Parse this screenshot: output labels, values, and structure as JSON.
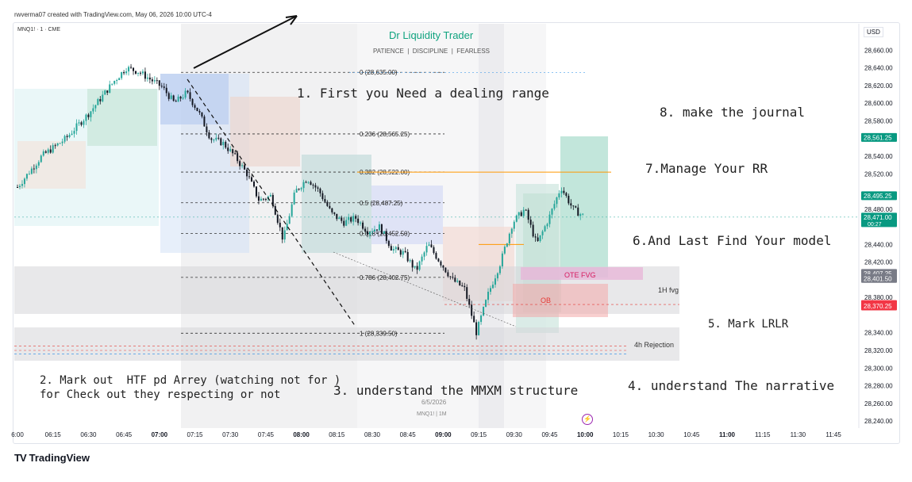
{
  "header": {
    "credit": "rwverma07 created with TradingView.com, May 06, 2026 10:00 UTC-4",
    "symbol": "MNQ1! · 1 · CME",
    "currency": "USD"
  },
  "brand": {
    "title": "Dr Liquidity Trader",
    "subtitle": "PATIENCE  |  DISCIPLINE  |  FEARLESS",
    "footer_logo": "TradingView",
    "watermark_date": "6/5/2026",
    "watermark_symbol": "MNQ1! | 1M"
  },
  "colors": {
    "up": "#26a69a",
    "down": "#131722",
    "accent": "#1e88e5",
    "price_tag_green": "#089981",
    "price_tag_red": "#f23645",
    "price_tag_gray": "#787b86",
    "fib_line": "#333333",
    "orange_level": "#ff9800"
  },
  "annotations": [
    "1. First you Need a dealing range",
    "2. Mark out  HTF pd Arrey (watching not for )",
    "for Check out they respecting or not",
    "3. understand the MMXM structure",
    "4. understand The narrative",
    "5. Mark LRLR",
    "6.And Last Find Your model",
    "7.Manage Your RR",
    "8. make the journal"
  ],
  "zone_labels": {
    "fvg_1h": "1H fvg",
    "rejection_4h": "4h Rejection",
    "ote_fvg": "OTE FVG",
    "ob": "OB"
  },
  "chart_data": {
    "type": "candlestick",
    "x_ticks": [
      "6:00",
      "06:15",
      "06:30",
      "06:45",
      "07:00",
      "07:15",
      "07:30",
      "07:45",
      "08:00",
      "08:15",
      "08:30",
      "08:45",
      "09:00",
      "09:15",
      "09:30",
      "09:45",
      "10:00",
      "10:15",
      "10:30",
      "10:45",
      "11:00",
      "11:15",
      "11:30",
      "11:45"
    ],
    "x_ticks_bold": [
      "07:00",
      "08:00",
      "09:00",
      "10:00",
      "11:00"
    ],
    "y_ticks": [
      28660,
      28640,
      28620,
      28600,
      28580,
      28560,
      28540,
      28520,
      28500,
      28480,
      28460,
      28440,
      28420,
      28400,
      28380,
      28360,
      28340,
      28320,
      28300,
      28280,
      28260,
      28240
    ],
    "y_tick_labels": [
      "28,660.00",
      "28,640.00",
      "28,620.00",
      "28,600.00",
      "28,580.00",
      "",
      "28,540.00",
      "28,520.00",
      "",
      "28,480.00",
      "",
      "28,440.00",
      "28,420.00",
      "",
      "28,380.00",
      "",
      "28,340.00",
      "28,320.00",
      "28,300.00",
      "28,280.00",
      "28,260.00",
      "28,240.00"
    ],
    "ylim": [
      28232,
      28690
    ],
    "fib_levels": [
      {
        "label": "0 (28,635.00)",
        "price": 28635.0
      },
      {
        "label": "0.236 (28,565.25)",
        "price": 28565.25
      },
      {
        "label": "0.382 (28,522.00)",
        "price": 28522.0
      },
      {
        "label": "0.5 (28,487.25)",
        "price": 28487.25
      },
      {
        "label": "0.618 (28,452.50)",
        "price": 28452.5
      },
      {
        "label": "0.786 (28,402.75)",
        "price": 28402.75
      },
      {
        "label": "1 (28,339.50)",
        "price": 28339.5
      }
    ],
    "price_tags": [
      {
        "label": "28,561.25",
        "price": 28561.25,
        "color": "#089981"
      },
      {
        "label": "28,495.25",
        "price": 28495.25,
        "color": "#089981"
      },
      {
        "label": "28,471.00",
        "price": 28471.0,
        "color": "#089981",
        "sub": "00:27"
      },
      {
        "label": "28,407.25",
        "price": 28407.25,
        "color": "#787b86"
      },
      {
        "label": "28,401.50",
        "price": 28401.5,
        "color": "#787b86"
      },
      {
        "label": "28,372.00",
        "price": 28372.0,
        "color": "#f23645"
      },
      {
        "label": "28,370.25",
        "price": 28370.25,
        "color": "#f23645"
      }
    ],
    "price_path": [
      [
        0,
        28505
      ],
      [
        4,
        28540
      ],
      [
        8,
        28560
      ],
      [
        12,
        28590
      ],
      [
        16,
        28625
      ],
      [
        18,
        28640
      ],
      [
        20,
        28636
      ],
      [
        24,
        28618
      ],
      [
        26,
        28600
      ],
      [
        28,
        28612
      ],
      [
        30,
        28590
      ],
      [
        32,
        28560
      ],
      [
        34,
        28555
      ],
      [
        36,
        28540
      ],
      [
        38,
        28520
      ],
      [
        40,
        28490
      ],
      [
        42,
        28495
      ],
      [
        44,
        28445
      ],
      [
        46,
        28500
      ],
      [
        48,
        28515
      ],
      [
        50,
        28500
      ],
      [
        52,
        28475
      ],
      [
        54,
        28465
      ],
      [
        56,
        28470
      ],
      [
        58,
        28455
      ],
      [
        60,
        28460
      ],
      [
        62,
        28435
      ],
      [
        64,
        28430
      ],
      [
        66,
        28410
      ],
      [
        68,
        28440
      ],
      [
        70,
        28420
      ],
      [
        72,
        28400
      ],
      [
        74,
        28390
      ],
      [
        76,
        28340
      ],
      [
        78,
        28385
      ],
      [
        80,
        28420
      ],
      [
        82,
        28465
      ],
      [
        84,
        28480
      ],
      [
        86,
        28440
      ],
      [
        88,
        28470
      ],
      [
        90,
        28505
      ],
      [
        92,
        28480
      ],
      [
        94,
        28471
      ]
    ],
    "series_label": "MNQ1!"
  }
}
